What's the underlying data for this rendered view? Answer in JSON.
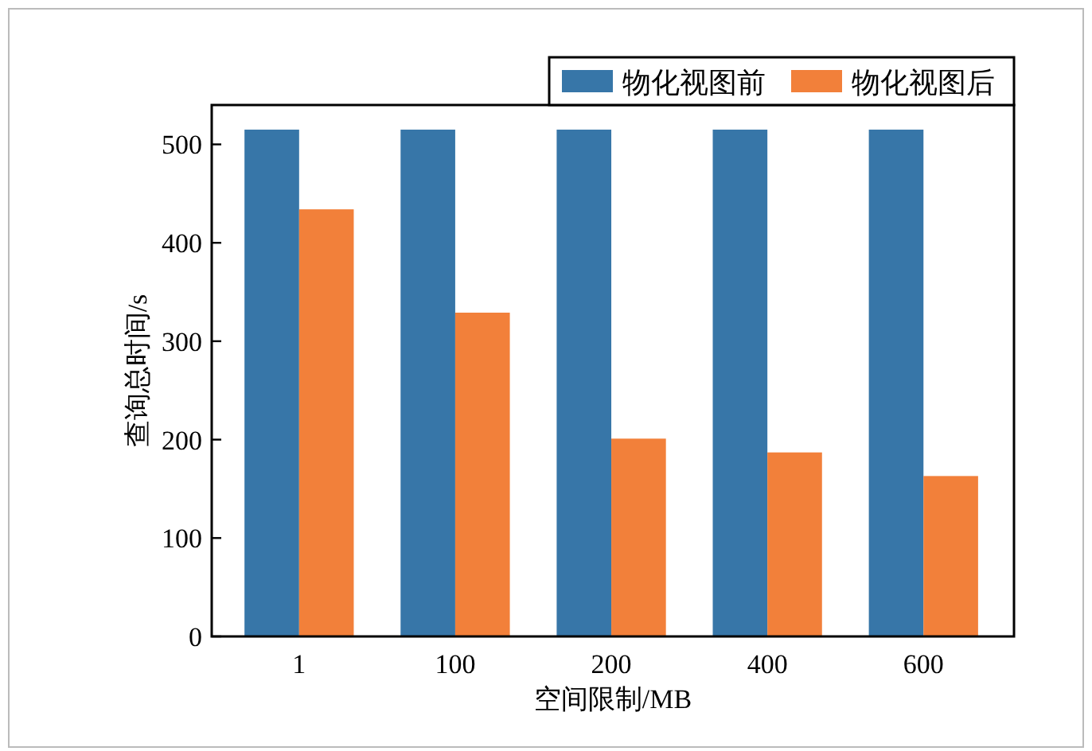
{
  "chart_data": {
    "type": "bar",
    "xlabel": "空间限制/MB",
    "ylabel": "查询总时间/s",
    "categories": [
      "1",
      "100",
      "200",
      "400",
      "600"
    ],
    "series": [
      {
        "name": "物化视图前",
        "color": "#3776a8",
        "values": [
          515,
          515,
          515,
          515,
          515
        ]
      },
      {
        "name": "物化视图后",
        "color": "#f2803a",
        "values": [
          434,
          329,
          201,
          187,
          163
        ]
      }
    ],
    "ylim": [
      0,
      540
    ],
    "yticks": [
      0,
      100,
      200,
      300,
      400,
      500
    ],
    "legend": "top right",
    "grid": false
  }
}
